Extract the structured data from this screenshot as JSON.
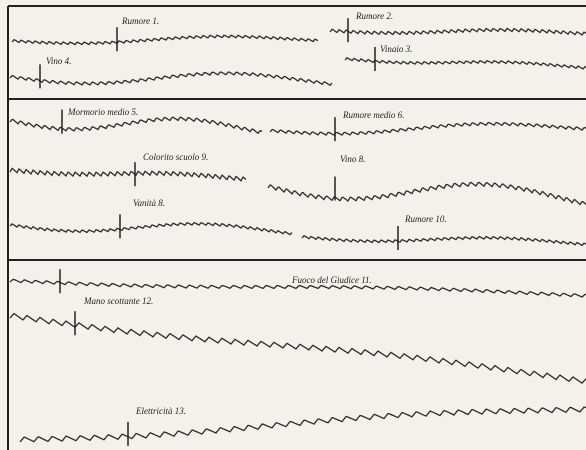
{
  "panels": [
    {
      "labels": [
        "Rumore 1.",
        "Rumore 2.",
        "Vino 4.",
        "Vinaio 3."
      ]
    },
    {
      "labels": [
        "Mormorio medio 5.",
        "Rumore medio 6.",
        "Colorito scuolo 9.",
        "Vino 8.",
        "Vanità 8.",
        "Rumore 10."
      ]
    },
    {
      "labels": [
        "Fuoco del Giudice 11.",
        "Mano scottante 12.",
        "Elettricità 13."
      ]
    }
  ]
}
